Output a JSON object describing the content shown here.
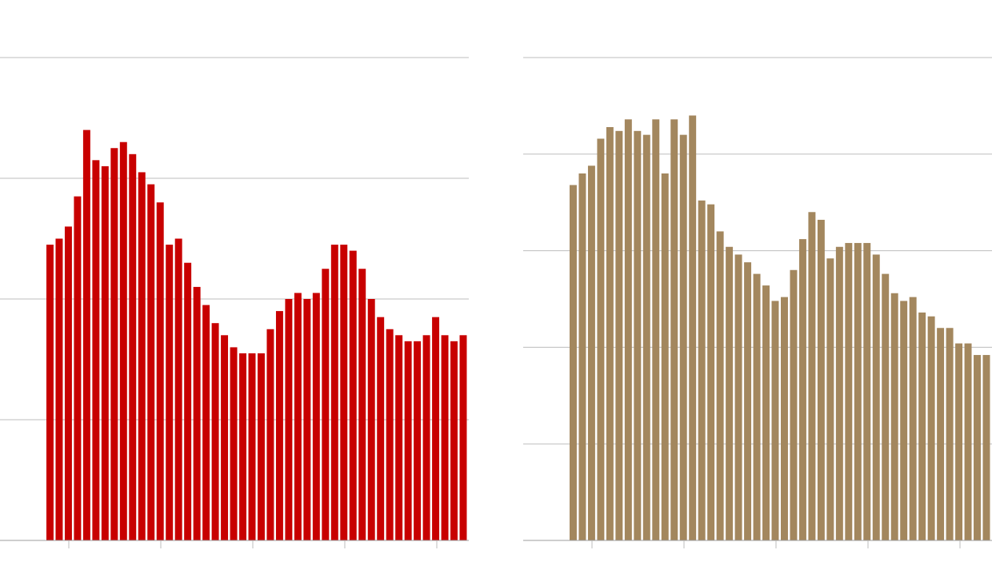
{
  "chart_data": [
    {
      "type": "bar",
      "color": "#c80000",
      "ylim": [
        0,
        40
      ],
      "yticks": [
        0,
        10,
        20,
        30,
        40
      ],
      "grid": true,
      "values": [
        24.5,
        25,
        26,
        28.5,
        34,
        31.5,
        31,
        32.5,
        33,
        32,
        30.5,
        29.5,
        28,
        24.5,
        25,
        23,
        21,
        19.5,
        18,
        17,
        16,
        15.5,
        15.5,
        15.5,
        17.5,
        19,
        20,
        20.5,
        20,
        20.5,
        22.5,
        24.5,
        24.5,
        24,
        22.5,
        20,
        18.5,
        17.5,
        17,
        16.5,
        16.5,
        17,
        18.5,
        17,
        16.5,
        17
      ]
    },
    {
      "type": "bar",
      "color": "#a3875e",
      "ylim": [
        0,
        25
      ],
      "yticks": [
        0,
        5,
        10,
        15,
        20,
        25
      ],
      "grid": true,
      "values": [
        18.4,
        19,
        19.4,
        20.8,
        21.4,
        21.2,
        21.8,
        21.2,
        21,
        21.8,
        19,
        21.8,
        21,
        22,
        17.6,
        17.4,
        16,
        15.2,
        14.8,
        14.4,
        13.8,
        13.2,
        12.4,
        12.6,
        14,
        15.6,
        17,
        16.6,
        14.6,
        15.2,
        15.4,
        15.4,
        15.4,
        14.8,
        13.8,
        12.8,
        12.4,
        12.6,
        11.8,
        11.6,
        11,
        11,
        10.2,
        10.2,
        9.6,
        9.6
      ]
    }
  ]
}
